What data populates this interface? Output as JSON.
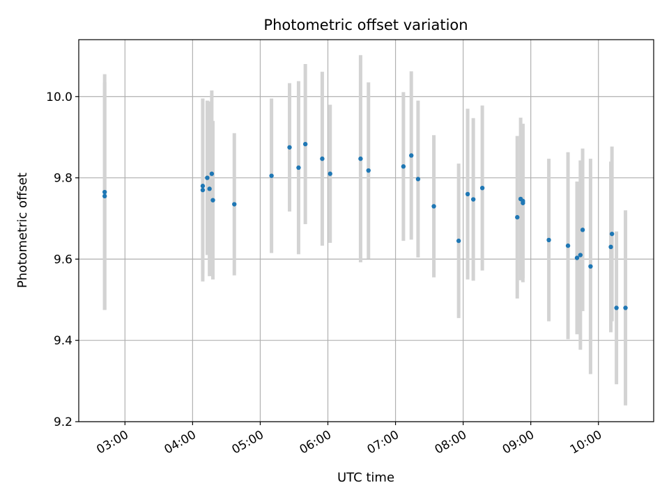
{
  "chart_data": {
    "type": "scatter",
    "title": "Photometric offset variation",
    "xlabel": "UTC time",
    "ylabel": "Photometric offset",
    "x_ticks": [
      "03:00",
      "04:00",
      "05:00",
      "06:00",
      "07:00",
      "08:00",
      "09:00",
      "10:00"
    ],
    "y_ticks": [
      "9.2",
      "9.4",
      "9.6",
      "9.8",
      "10.0"
    ],
    "xlim": [
      "02:19",
      "10:49"
    ],
    "ylim": [
      9.2,
      10.14
    ],
    "grid": true,
    "colors": {
      "point": "#1f77b4",
      "errorbar": "#d3d3d3",
      "grid": "#b0b0b0"
    },
    "points": [
      {
        "x": "02:42",
        "y": 9.765,
        "yerr": 0.29
      },
      {
        "x": "02:42",
        "y": 9.755,
        "yerr": 0.28
      },
      {
        "x": "04:09",
        "y": 9.77,
        "yerr": 0.225
      },
      {
        "x": "04:09",
        "y": 9.78,
        "yerr": 0.215
      },
      {
        "x": "04:13",
        "y": 9.8,
        "yerr": 0.19
      },
      {
        "x": "04:15",
        "y": 9.773,
        "yerr": 0.215
      },
      {
        "x": "04:17",
        "y": 9.81,
        "yerr": 0.205
      },
      {
        "x": "04:18",
        "y": 9.745,
        "yerr": 0.195
      },
      {
        "x": "04:37",
        "y": 9.735,
        "yerr": 0.175
      },
      {
        "x": "05:10",
        "y": 9.805,
        "yerr": 0.19
      },
      {
        "x": "05:26",
        "y": 9.875,
        "yerr": 0.158
      },
      {
        "x": "05:34",
        "y": 9.825,
        "yerr": 0.213
      },
      {
        "x": "05:40",
        "y": 9.883,
        "yerr": 0.197
      },
      {
        "x": "05:55",
        "y": 9.847,
        "yerr": 0.214
      },
      {
        "x": "06:02",
        "y": 9.81,
        "yerr": 0.17
      },
      {
        "x": "06:29",
        "y": 9.847,
        "yerr": 0.255
      },
      {
        "x": "06:36",
        "y": 9.818,
        "yerr": 0.217
      },
      {
        "x": "07:07",
        "y": 9.828,
        "yerr": 0.183
      },
      {
        "x": "07:14",
        "y": 9.855,
        "yerr": 0.207
      },
      {
        "x": "07:20",
        "y": 9.797,
        "yerr": 0.193
      },
      {
        "x": "07:34",
        "y": 9.73,
        "yerr": 0.175
      },
      {
        "x": "07:56",
        "y": 9.645,
        "yerr": 0.19
      },
      {
        "x": "08:04",
        "y": 9.76,
        "yerr": 0.21
      },
      {
        "x": "08:09",
        "y": 9.747,
        "yerr": 0.2
      },
      {
        "x": "08:17",
        "y": 9.775,
        "yerr": 0.203
      },
      {
        "x": "08:48",
        "y": 9.703,
        "yerr": 0.2
      },
      {
        "x": "08:51",
        "y": 9.748,
        "yerr": 0.2
      },
      {
        "x": "08:53",
        "y": 9.738,
        "yerr": 0.195
      },
      {
        "x": "08:53",
        "y": 9.743,
        "yerr": 0.19
      },
      {
        "x": "09:16",
        "y": 9.647,
        "yerr": 0.2
      },
      {
        "x": "09:33",
        "y": 9.633,
        "yerr": 0.23
      },
      {
        "x": "09:41",
        "y": 9.603,
        "yerr": 0.188
      },
      {
        "x": "09:44",
        "y": 9.61,
        "yerr": 0.233
      },
      {
        "x": "09:46",
        "y": 9.672,
        "yerr": 0.2
      },
      {
        "x": "09:53",
        "y": 9.582,
        "yerr": 0.265
      },
      {
        "x": "10:11",
        "y": 9.63,
        "yerr": 0.21
      },
      {
        "x": "10:12",
        "y": 9.662,
        "yerr": 0.215
      },
      {
        "x": "10:16",
        "y": 9.48,
        "yerr": 0.188
      },
      {
        "x": "10:24",
        "y": 9.48,
        "yerr": 0.24
      }
    ]
  }
}
